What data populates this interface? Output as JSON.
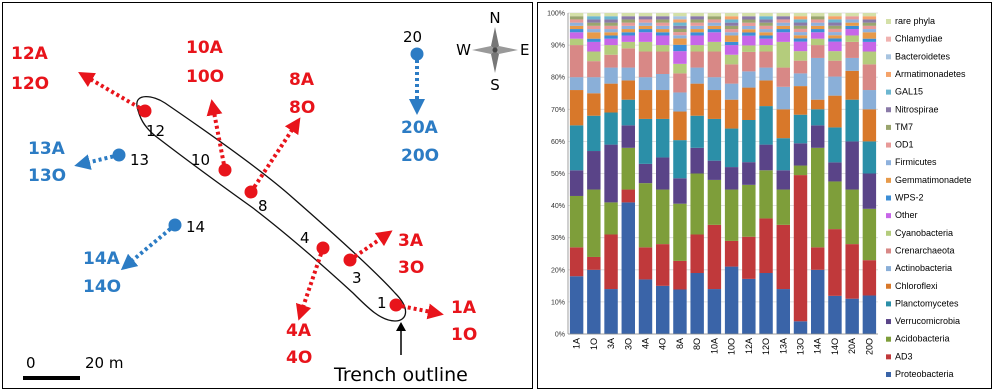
{
  "map": {
    "compass": {
      "n": "N",
      "s": "S",
      "e": "E",
      "w": "W"
    },
    "scale": {
      "start": "0",
      "end": "20 m"
    },
    "trench_label": "Trench outline",
    "colors": {
      "red": "#e8141b",
      "blue": "#2c7cc4"
    },
    "sites": [
      {
        "id": "12",
        "label_a": "12A",
        "label_o": "12O",
        "color": "red"
      },
      {
        "id": "10",
        "label_a": "10A",
        "label_o": "10O",
        "color": "red"
      },
      {
        "id": "8",
        "label_a": "8A",
        "label_o": "8O",
        "color": "red"
      },
      {
        "id": "20",
        "label_a": "20A",
        "label_o": "20O",
        "color": "blue"
      },
      {
        "id": "13",
        "label_a": "13A",
        "label_o": "13O",
        "color": "blue"
      },
      {
        "id": "14",
        "label_a": "14A",
        "label_o": "14O",
        "color": "blue"
      },
      {
        "id": "4",
        "label_a": "4A",
        "label_o": "4O",
        "color": "red"
      },
      {
        "id": "3",
        "label_a": "3A",
        "label_o": "3O",
        "color": "red"
      },
      {
        "id": "1",
        "label_a": "1A",
        "label_o": "1O",
        "color": "red"
      }
    ]
  },
  "chart_data": {
    "type": "bar",
    "stacked": true,
    "ylim": [
      0,
      100
    ],
    "yticks": [
      "0%",
      "10%",
      "20%",
      "30%",
      "40%",
      "50%",
      "60%",
      "70%",
      "80%",
      "90%",
      "100%"
    ],
    "categories": [
      "1A",
      "1O",
      "3A",
      "3O",
      "4A",
      "4O",
      "8A",
      "8O",
      "10A",
      "10O",
      "12A",
      "12O",
      "13A",
      "13O",
      "14A",
      "14O",
      "20A",
      "20O"
    ],
    "legend_position": "right",
    "series": [
      {
        "name": "Proteobacteria",
        "color": "#3a64a8",
        "values": [
          18,
          20,
          14,
          41,
          17,
          15,
          14,
          19,
          14,
          21,
          17,
          19,
          14,
          4,
          20,
          12,
          11,
          12
        ]
      },
      {
        "name": "AD3",
        "color": "#c0393b",
        "values": [
          9,
          4,
          17,
          4,
          10,
          13,
          9,
          12,
          20,
          8,
          13,
          17,
          20,
          46,
          7,
          21,
          17,
          11
        ]
      },
      {
        "name": "Acidobacteria",
        "color": "#7e9e3a",
        "values": [
          16,
          21,
          10,
          13,
          20,
          17,
          18,
          19,
          14,
          16,
          16,
          15,
          11,
          3,
          31,
          15,
          17,
          16
        ]
      },
      {
        "name": "Verrucomicrobia",
        "color": "#5a4488",
        "values": [
          8,
          12,
          18,
          7,
          6,
          10,
          8,
          8,
          6,
          7,
          7,
          8,
          6,
          7,
          7,
          6,
          15,
          11
        ]
      },
      {
        "name": "Planctomycetes",
        "color": "#2b8fa8",
        "values": [
          14,
          11,
          10,
          8,
          14,
          12,
          12,
          10,
          13,
          12,
          13,
          12,
          10,
          9,
          5,
          11,
          13,
          10
        ]
      },
      {
        "name": "Chloroflexi",
        "color": "#d8782a",
        "values": [
          11,
          7,
          9,
          6,
          9,
          9,
          9,
          10,
          9,
          9,
          10,
          8,
          9,
          9,
          3,
          10,
          9,
          10
        ]
      },
      {
        "name": "Actinobacteria",
        "color": "#8aafd8",
        "values": [
          4,
          5,
          5,
          4,
          4,
          5,
          6,
          5,
          4,
          5,
          5,
          4,
          7,
          4,
          13,
          6,
          4,
          6
        ]
      },
      {
        "name": "Crenarchaeota",
        "color": "#d88886",
        "values": [
          10,
          5,
          4,
          6,
          8,
          7,
          6,
          5,
          8,
          6,
          6,
          5,
          6,
          4,
          4,
          5,
          5,
          8
        ]
      },
      {
        "name": "Cyanobacteria",
        "color": "#b4cc7c",
        "values": [
          2,
          3,
          3,
          2,
          3,
          2,
          3,
          2,
          3,
          3,
          2,
          2,
          8,
          3,
          2,
          3,
          2,
          4
        ]
      },
      {
        "name": "Other",
        "color": "#c766e8",
        "values": [
          2,
          3,
          2,
          2,
          3,
          3,
          4,
          3,
          3,
          3,
          3,
          2,
          3,
          3,
          2,
          3,
          2,
          3
        ]
      },
      {
        "name": "WPS-2",
        "color": "#3c8ed6",
        "values": [
          1,
          1,
          1,
          1,
          1,
          1,
          2,
          1,
          1,
          1,
          1,
          1,
          1,
          1,
          1,
          1,
          1,
          1
        ]
      },
      {
        "name": "Gemmatimonadete",
        "color": "#e79a4a",
        "values": [
          1,
          2,
          1,
          1,
          1,
          1,
          2,
          1,
          1,
          2,
          1,
          1,
          1,
          1,
          1,
          1,
          1,
          2
        ]
      },
      {
        "name": "Firmicutes",
        "color": "#8eb1dd",
        "values": [
          1,
          1,
          1,
          1,
          1,
          1,
          1,
          1,
          1,
          1,
          1,
          1,
          1,
          1,
          1,
          1,
          1,
          1
        ]
      },
      {
        "name": "OD1",
        "color": "#e89a98",
        "values": [
          1,
          1,
          1,
          1,
          1,
          1,
          1,
          1,
          1,
          1,
          1,
          1,
          1,
          1,
          1,
          1,
          1,
          1
        ]
      },
      {
        "name": "TM7",
        "color": "#9aa56e",
        "values": [
          1,
          1,
          1,
          1,
          0,
          1,
          1,
          1,
          1,
          1,
          1,
          1,
          0,
          1,
          1,
          1,
          0,
          1
        ]
      },
      {
        "name": "Nitrospirae",
        "color": "#8a7aa8",
        "values": [
          0,
          1,
          1,
          1,
          1,
          1,
          1,
          1,
          0,
          1,
          1,
          1,
          1,
          1,
          0,
          1,
          0,
          1
        ]
      },
      {
        "name": "GAL15",
        "color": "#6cb6d0",
        "values": [
          0,
          1,
          1,
          0,
          0,
          0,
          1,
          0,
          0,
          1,
          0,
          1,
          0,
          1,
          0,
          1,
          0,
          0
        ]
      },
      {
        "name": "Armatimonadetes",
        "color": "#f5a36a",
        "values": [
          0,
          0,
          0,
          0,
          0,
          0,
          1,
          0,
          0,
          1,
          0,
          0,
          0,
          1,
          0,
          1,
          0,
          1
        ]
      },
      {
        "name": "Bacteroidetes",
        "color": "#a8c4e0",
        "values": [
          0,
          0,
          0,
          0,
          0,
          0,
          1,
          0,
          0,
          0,
          0,
          0,
          0,
          0,
          0,
          0,
          0,
          0
        ]
      },
      {
        "name": "Chlamydiae",
        "color": "#f0b2b0",
        "values": [
          0,
          0,
          0,
          0,
          0,
          0,
          0,
          0,
          0,
          0,
          0,
          0,
          0,
          0,
          0,
          0,
          0,
          0
        ]
      },
      {
        "name": "rare phyla",
        "color": "#d4e0a8",
        "values": [
          1,
          1,
          1,
          1,
          1,
          1,
          1,
          1,
          1,
          1,
          1,
          1,
          1,
          1,
          1,
          1,
          1,
          1
        ]
      }
    ]
  }
}
